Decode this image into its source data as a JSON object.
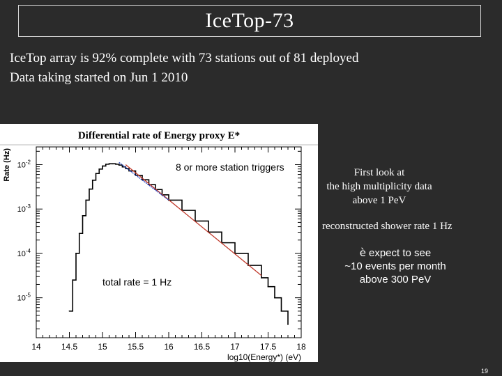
{
  "slide": {
    "title": "IceTop-73",
    "lines": [
      "IceTop array is 92% complete with 73 stations out of 81 deployed",
      "Data taking started on Jun 1 2010"
    ],
    "page_number": "19"
  },
  "annotations": {
    "first_look": [
      "First look at",
      "the high multiplicity data",
      "above 1 PeV"
    ],
    "shower_rate": "reconstructed shower rate 1 Hz",
    "arrow_symbol": "è",
    "expect": [
      "expect to see",
      "~10 events per month",
      "above 300 PeV"
    ]
  },
  "colors": {
    "background": "#2b2b2b",
    "fit_red": "#c0392b",
    "fit_blue": "#1f3fbf"
  },
  "chart_data": {
    "type": "line",
    "title": "Differential rate of Energy proxy E*",
    "xlabel": "log10(Energy*) (eV)",
    "ylabel": "Rate (Hz)",
    "xlim": [
      14,
      18
    ],
    "ylim_log10": [
      -5.9,
      -1.6
    ],
    "x_ticks": [
      "14",
      "14.5",
      "15",
      "15.5",
      "16",
      "16.5",
      "17",
      "17.5",
      "18"
    ],
    "y_ticks": [
      {
        "label": "10",
        "exp": "-2",
        "log": -2
      },
      {
        "label": "10",
        "exp": "-3",
        "log": -3
      },
      {
        "label": "10",
        "exp": "-4",
        "log": -4
      },
      {
        "label": "10",
        "exp": "-5",
        "log": -5
      }
    ],
    "legend_text": "8 or more station triggers",
    "annotation": "total rate = 1 Hz",
    "series": [
      {
        "name": "data",
        "x": [
          14.5,
          14.55,
          14.6,
          14.65,
          14.7,
          14.75,
          14.8,
          14.85,
          14.9,
          14.95,
          15.0,
          15.05,
          15.1,
          15.15,
          15.2,
          15.25,
          15.3,
          15.35,
          15.4,
          15.5,
          15.6,
          15.7,
          15.8,
          15.9,
          16.0,
          16.2,
          16.4,
          16.6,
          16.8,
          17.0,
          17.2,
          17.4,
          17.5,
          17.6,
          17.7,
          17.8
        ],
        "log_rate": [
          -5.3,
          -4.6,
          -4.0,
          -3.55,
          -3.15,
          -2.8,
          -2.55,
          -2.35,
          -2.2,
          -2.1,
          -2.03,
          -1.99,
          -1.98,
          -1.98,
          -1.99,
          -2.01,
          -2.05,
          -2.09,
          -2.14,
          -2.24,
          -2.34,
          -2.45,
          -2.56,
          -2.68,
          -2.8,
          -3.03,
          -3.27,
          -3.52,
          -3.76,
          -4.0,
          -4.27,
          -4.55,
          -4.75,
          -5.0,
          -5.3,
          -5.6
        ]
      },
      {
        "name": "fit (red)",
        "x": [
          15.35,
          17.4
        ],
        "log_rate": [
          -2.0,
          -4.5
        ]
      },
      {
        "name": "fit (blue)",
        "x": [
          15.25,
          16.0
        ],
        "log_rate": [
          -1.95,
          -2.8
        ]
      }
    ]
  }
}
